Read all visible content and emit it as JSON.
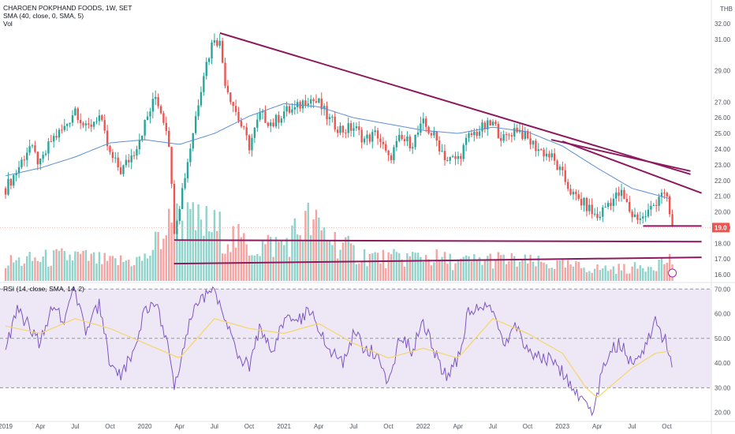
{
  "legend": {
    "symbol": "CHAROEN POKPHAND FOODS, 1W, SET",
    "sma": "SMA (40, close, 0, SMA, 5)",
    "vol": "Vol",
    "rsi": "RSI (14, close, SMA, 14, 2)"
  },
  "currency": "THB",
  "last_price_label": "19.0",
  "colors": {
    "up": "#26a69a",
    "down": "#ef5350",
    "vol_up": "#8fd3cb",
    "vol_down": "#f5a3a1",
    "sma": "#5b8fd4",
    "trendline": "#8b1a5e",
    "rsi_line": "#7e57c2",
    "rsi_sma": "#f5d66b",
    "rsi_band": "#ede7f6",
    "last_price": "#ef5350"
  },
  "chart_data": [
    {
      "type": "candlestick",
      "title": "CHAROEN POKPHAND FOODS, 1W, SET",
      "x_labels": [
        "2019",
        "Apr",
        "Jul",
        "Oct",
        "2020",
        "Apr",
        "Jul",
        "Oct",
        "2021",
        "Apr",
        "Jul",
        "Oct",
        "2022",
        "Apr",
        "Jul",
        "Oct",
        "2023",
        "Apr",
        "Jul",
        "Oct"
      ],
      "y_ticks": [
        "32.00",
        "31.00",
        "29.00",
        "27.00",
        "26.00",
        "25.00",
        "24.00",
        "23.00",
        "22.00",
        "21.00",
        "20.00",
        "19.00",
        "18.00",
        "17.00",
        "16.00"
      ],
      "ylim": [
        15.6,
        32.5
      ],
      "close_path": [
        [
          2019.0,
          21.5
        ],
        [
          2019.08,
          22.6
        ],
        [
          2019.17,
          24.2
        ],
        [
          2019.25,
          23.0
        ],
        [
          2019.33,
          24.6
        ],
        [
          2019.42,
          25.3
        ],
        [
          2019.5,
          26.6
        ],
        [
          2019.58,
          25.2
        ],
        [
          2019.67,
          26.2
        ],
        [
          2019.75,
          23.6
        ],
        [
          2019.83,
          22.6
        ],
        [
          2019.92,
          23.8
        ],
        [
          2020.0,
          25.6
        ],
        [
          2020.08,
          27.4
        ],
        [
          2020.17,
          25.0
        ],
        [
          2020.21,
          18.9
        ],
        [
          2020.25,
          20.5
        ],
        [
          2020.33,
          24.3
        ],
        [
          2020.42,
          28.8
        ],
        [
          2020.5,
          31.2
        ],
        [
          2020.54,
          30.7
        ],
        [
          2020.58,
          28.2
        ],
        [
          2020.67,
          26.0
        ],
        [
          2020.75,
          24.2
        ],
        [
          2020.83,
          26.2
        ],
        [
          2020.92,
          25.6
        ],
        [
          2021.0,
          26.4
        ],
        [
          2021.08,
          26.5
        ],
        [
          2021.17,
          27.3
        ],
        [
          2021.25,
          26.9
        ],
        [
          2021.33,
          25.8
        ],
        [
          2021.42,
          25.2
        ],
        [
          2021.5,
          25.4
        ],
        [
          2021.58,
          24.6
        ],
        [
          2021.67,
          25.0
        ],
        [
          2021.75,
          23.3
        ],
        [
          2021.83,
          24.6
        ],
        [
          2021.92,
          24.4
        ],
        [
          2022.0,
          25.6
        ],
        [
          2022.08,
          24.8
        ],
        [
          2022.17,
          23.3
        ],
        [
          2022.25,
          23.4
        ],
        [
          2022.33,
          24.8
        ],
        [
          2022.42,
          25.3
        ],
        [
          2022.5,
          25.6
        ],
        [
          2022.58,
          24.6
        ],
        [
          2022.67,
          25.4
        ],
        [
          2022.75,
          24.6
        ],
        [
          2022.83,
          24.0
        ],
        [
          2022.92,
          23.5
        ],
        [
          2023.0,
          22.3
        ],
        [
          2023.08,
          21.0
        ],
        [
          2023.17,
          20.4
        ],
        [
          2023.25,
          19.6
        ],
        [
          2023.33,
          20.6
        ],
        [
          2023.42,
          21.2
        ],
        [
          2023.5,
          19.8
        ],
        [
          2023.58,
          19.6
        ],
        [
          2023.67,
          20.6
        ],
        [
          2023.71,
          21.4
        ],
        [
          2023.75,
          20.7
        ],
        [
          2023.79,
          19.0
        ]
      ],
      "sma_path": [
        [
          2019.0,
          22.3
        ],
        [
          2019.25,
          22.8
        ],
        [
          2019.5,
          23.5
        ],
        [
          2019.75,
          24.4
        ],
        [
          2020.0,
          24.6
        ],
        [
          2020.25,
          24.3
        ],
        [
          2020.5,
          25.0
        ],
        [
          2020.75,
          26.1
        ],
        [
          2021.0,
          26.9
        ],
        [
          2021.25,
          26.7
        ],
        [
          2021.5,
          26.0
        ],
        [
          2021.75,
          25.6
        ],
        [
          2022.0,
          25.2
        ],
        [
          2022.25,
          25.0
        ],
        [
          2022.5,
          25.4
        ],
        [
          2022.75,
          25.1
        ],
        [
          2023.0,
          24.2
        ],
        [
          2023.25,
          22.8
        ],
        [
          2023.5,
          21.5
        ],
        [
          2023.79,
          20.8
        ]
      ],
      "volume_path": [
        [
          2019.0,
          0.3
        ],
        [
          2019.25,
          0.35
        ],
        [
          2019.5,
          0.4
        ],
        [
          2019.75,
          0.3
        ],
        [
          2020.0,
          0.35
        ],
        [
          2020.21,
          1.0
        ],
        [
          2020.5,
          0.85
        ],
        [
          2020.75,
          0.55
        ],
        [
          2021.0,
          0.6
        ],
        [
          2021.17,
          0.95
        ],
        [
          2021.5,
          0.45
        ],
        [
          2021.75,
          0.35
        ],
        [
          2022.0,
          0.4
        ],
        [
          2022.25,
          0.3
        ],
        [
          2022.5,
          0.35
        ],
        [
          2022.75,
          0.3
        ],
        [
          2023.0,
          0.25
        ],
        [
          2023.25,
          0.2
        ],
        [
          2023.5,
          0.2
        ],
        [
          2023.79,
          0.35
        ]
      ],
      "trendlines": [
        {
          "from": [
            2020.54,
            31.4
          ],
          "to": [
            2023.92,
            22.4
          ]
        },
        {
          "from": [
            2023.0,
            24.5
          ],
          "to": [
            2024.0,
            21.2
          ]
        },
        {
          "from": [
            2022.92,
            24.6
          ],
          "to": [
            2023.92,
            22.6
          ]
        },
        {
          "from": [
            2023.58,
            19.1
          ],
          "to": [
            2024.0,
            19.1
          ]
        },
        {
          "from": [
            2020.21,
            18.2
          ],
          "to": [
            2024.0,
            18.1
          ]
        },
        {
          "from": [
            2020.21,
            16.7
          ],
          "to": [
            2024.0,
            17.1
          ]
        }
      ],
      "last_price": 19.0
    },
    {
      "type": "line",
      "title": "RSI (14, close, SMA, 14, 2)",
      "y_ticks": [
        "70.00",
        "60.00",
        "50.00",
        "40.00",
        "30.00",
        "20.00"
      ],
      "ylim": [
        17,
        72
      ],
      "band": [
        30,
        70
      ],
      "midline": 50,
      "rsi_path": [
        [
          2019.0,
          45
        ],
        [
          2019.08,
          62
        ],
        [
          2019.17,
          55
        ],
        [
          2019.25,
          48
        ],
        [
          2019.33,
          62
        ],
        [
          2019.42,
          58
        ],
        [
          2019.5,
          70
        ],
        [
          2019.58,
          52
        ],
        [
          2019.67,
          64
        ],
        [
          2019.75,
          40
        ],
        [
          2019.83,
          34
        ],
        [
          2019.92,
          46
        ],
        [
          2020.0,
          62
        ],
        [
          2020.08,
          66
        ],
        [
          2020.17,
          45
        ],
        [
          2020.21,
          30
        ],
        [
          2020.25,
          40
        ],
        [
          2020.33,
          60
        ],
        [
          2020.42,
          66
        ],
        [
          2020.5,
          69
        ],
        [
          2020.58,
          58
        ],
        [
          2020.67,
          44
        ],
        [
          2020.75,
          38
        ],
        [
          2020.83,
          55
        ],
        [
          2020.92,
          46
        ],
        [
          2021.0,
          58
        ],
        [
          2021.08,
          55
        ],
        [
          2021.17,
          62
        ],
        [
          2021.25,
          55
        ],
        [
          2021.33,
          46
        ],
        [
          2021.42,
          40
        ],
        [
          2021.5,
          52
        ],
        [
          2021.58,
          46
        ],
        [
          2021.67,
          44
        ],
        [
          2021.75,
          30
        ],
        [
          2021.83,
          52
        ],
        [
          2021.92,
          45
        ],
        [
          2022.0,
          57
        ],
        [
          2022.08,
          44
        ],
        [
          2022.17,
          34
        ],
        [
          2022.25,
          42
        ],
        [
          2022.33,
          62
        ],
        [
          2022.42,
          63
        ],
        [
          2022.5,
          62
        ],
        [
          2022.58,
          46
        ],
        [
          2022.67,
          56
        ],
        [
          2022.75,
          44
        ],
        [
          2022.83,
          42
        ],
        [
          2022.92,
          42
        ],
        [
          2023.0,
          36
        ],
        [
          2023.08,
          28
        ],
        [
          2023.17,
          24
        ],
        [
          2023.21,
          20
        ],
        [
          2023.25,
          28
        ],
        [
          2023.33,
          44
        ],
        [
          2023.42,
          48
        ],
        [
          2023.5,
          40
        ],
        [
          2023.58,
          44
        ],
        [
          2023.67,
          58
        ],
        [
          2023.71,
          52
        ],
        [
          2023.75,
          48
        ],
        [
          2023.79,
          38
        ]
      ],
      "rsi_sma_path": [
        [
          2019.0,
          55
        ],
        [
          2019.25,
          52
        ],
        [
          2019.5,
          58
        ],
        [
          2019.75,
          54
        ],
        [
          2020.0,
          48
        ],
        [
          2020.25,
          42
        ],
        [
          2020.5,
          58
        ],
        [
          2020.75,
          54
        ],
        [
          2021.0,
          52
        ],
        [
          2021.25,
          56
        ],
        [
          2021.5,
          48
        ],
        [
          2021.75,
          42
        ],
        [
          2022.0,
          46
        ],
        [
          2022.25,
          42
        ],
        [
          2022.5,
          58
        ],
        [
          2022.75,
          52
        ],
        [
          2023.0,
          44
        ],
        [
          2023.17,
          30
        ],
        [
          2023.25,
          26
        ],
        [
          2023.5,
          38
        ],
        [
          2023.67,
          44
        ],
        [
          2023.79,
          45
        ]
      ]
    }
  ]
}
